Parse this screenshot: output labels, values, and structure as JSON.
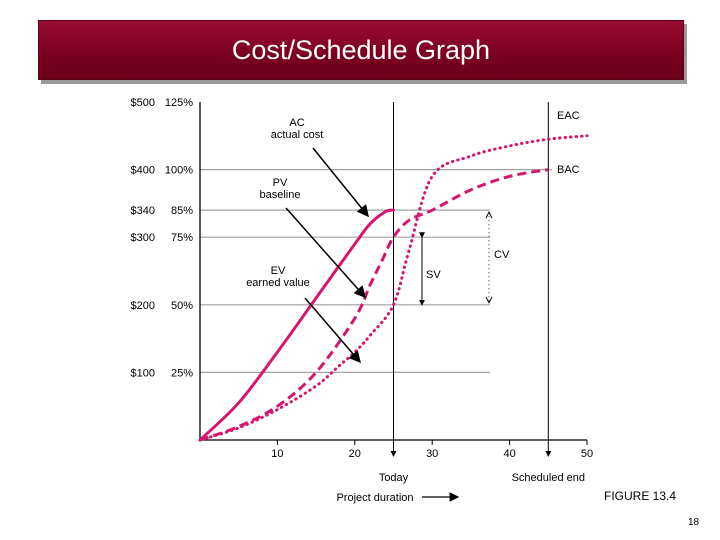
{
  "slide": {
    "title": "Cost/Schedule Graph",
    "figure_label": "FIGURE 13.4",
    "page_number": "18"
  },
  "colors": {
    "curve": "#d6166e",
    "axis": "#000000",
    "gridline": "#a0a0a0",
    "title_bg": "#7a0020"
  },
  "chart_data": {
    "type": "line",
    "title": "",
    "xlabel": "Project duration",
    "ylabel": "",
    "xlim": [
      0,
      50
    ],
    "ylim": [
      0,
      500
    ],
    "x_ticks": [
      "10",
      "20",
      "30",
      "40",
      "50"
    ],
    "y_tick_dollars": [
      "$100",
      "$200",
      "$300",
      "$340",
      "$400",
      "$500"
    ],
    "y_tick_percents": [
      "25%",
      "50%",
      "75%",
      "85%",
      "100%",
      "125%"
    ],
    "y_tick_values": [
      100,
      200,
      300,
      340,
      400,
      500
    ],
    "today_x": 25,
    "scheduled_end_x": 45,
    "today_label": "Today",
    "scheduled_end_label": "Scheduled end",
    "series": [
      {
        "label_line1": "AC",
        "label_line2": "actual cost",
        "style": "solid",
        "x": [
          0,
          5,
          10,
          15,
          20,
          22,
          24,
          25
        ],
        "y": [
          0,
          55,
          130,
          210,
          290,
          320,
          338,
          340
        ]
      },
      {
        "label_line1": "PV",
        "label_line2": "baseline",
        "style": "dashed",
        "x": [
          0,
          5,
          10,
          15,
          20,
          22,
          23.5,
          25,
          27,
          30,
          35,
          40,
          45
        ],
        "y": [
          0,
          20,
          50,
          100,
          180,
          230,
          265,
          300,
          325,
          340,
          370,
          390,
          400
        ]
      },
      {
        "label_line1": "EV",
        "label_line2": "earned value",
        "style": "dotted",
        "x": [
          0,
          5,
          10,
          15,
          18,
          20,
          22,
          25,
          27,
          30,
          35,
          40,
          45,
          50
        ],
        "y": [
          0,
          18,
          45,
          80,
          110,
          130,
          155,
          200,
          280,
          390,
          420,
          435,
          445,
          450
        ]
      }
    ],
    "annotations": {
      "eac": "EAC",
      "bac": "BAC",
      "sv": "SV",
      "cv": "CV"
    }
  }
}
